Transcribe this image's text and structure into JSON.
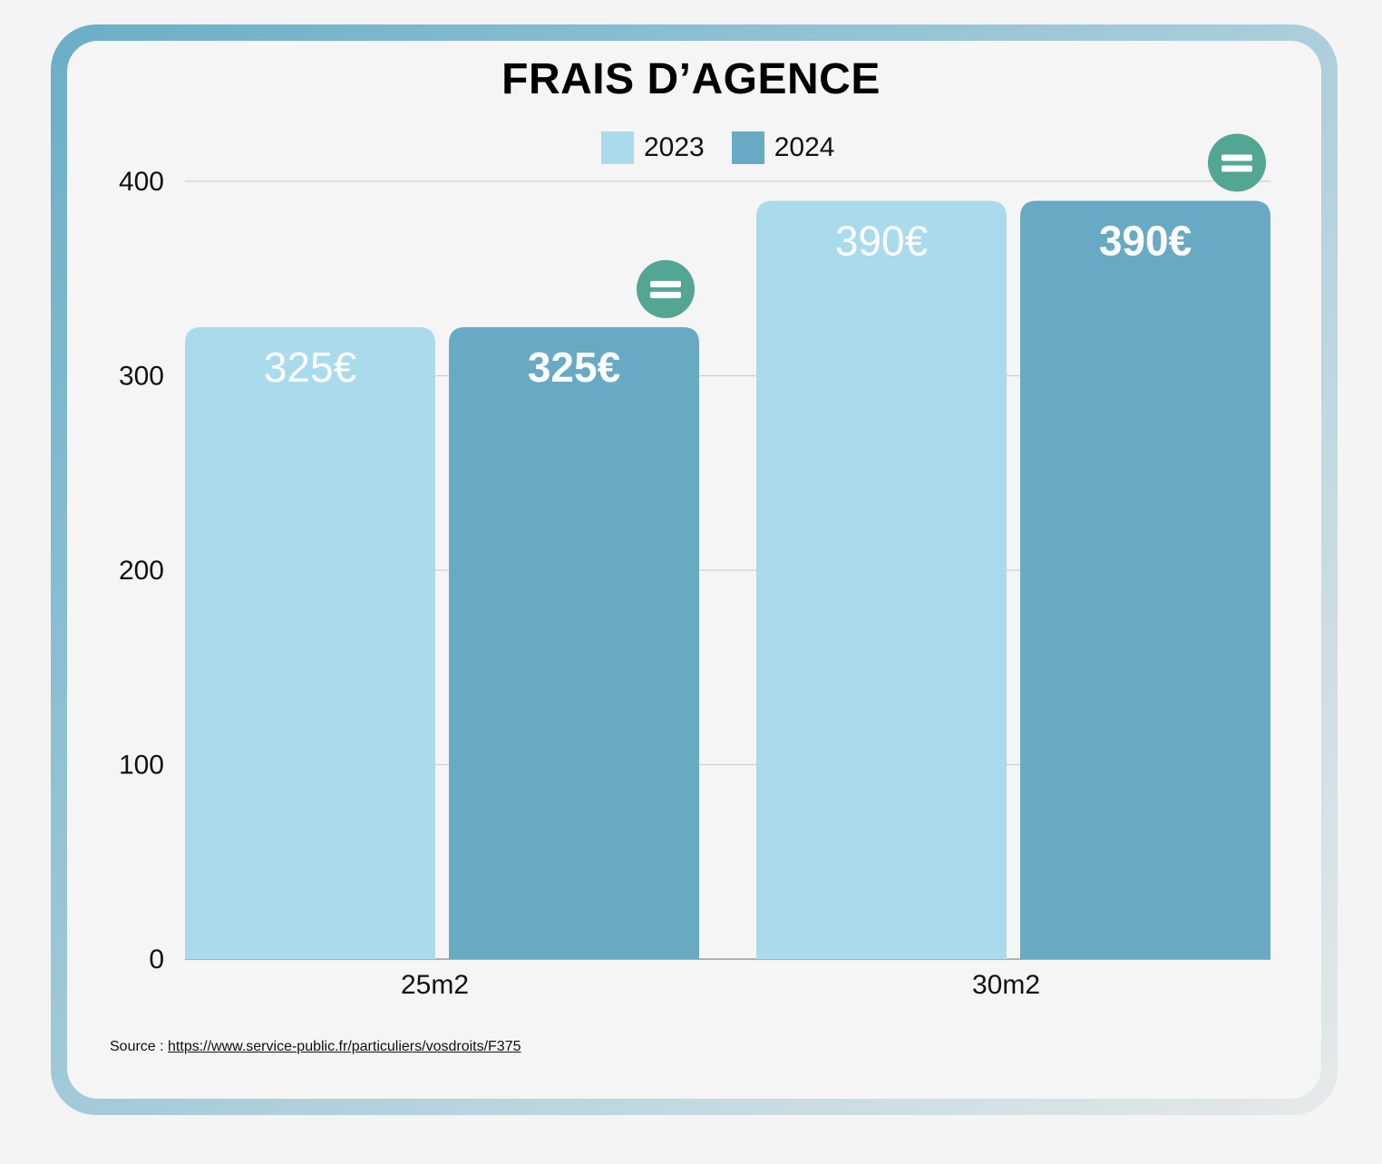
{
  "chart_data": {
    "type": "bar",
    "title": "FRAIS D’AGENCE",
    "categories": [
      "25m2",
      "30m2"
    ],
    "series": [
      {
        "name": "2023",
        "values": [
          325,
          390
        ],
        "labels": [
          "325€",
          "390€"
        ],
        "color": "#a9dbec"
      },
      {
        "name": "2024",
        "values": [
          325,
          390
        ],
        "labels": [
          "325€",
          "390€"
        ],
        "color": "#68aac3"
      }
    ],
    "ylim": [
      0,
      400
    ],
    "yticks": [
      0,
      100,
      200,
      300,
      400
    ],
    "grid": true,
    "legend": "top-center",
    "change_icons": [
      {
        "category": "25m2",
        "icon": "equal-icon",
        "color": "#52a693"
      },
      {
        "category": "30m2",
        "icon": "equal-icon",
        "color": "#52a693"
      }
    ]
  },
  "source": {
    "prefix": "Source : ",
    "link_text": "https://www.service-public.fr/particuliers/vosdroits/F375"
  }
}
